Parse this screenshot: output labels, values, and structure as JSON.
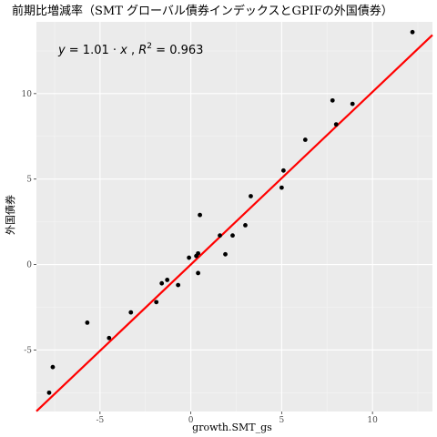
{
  "chart_data": {
    "type": "scatter",
    "title": "前期比増減率（SMT グローバル債券インデックスとGPIFの外国債券）",
    "xlabel": "growth.SMT_gs",
    "ylabel": "外国債券",
    "xlim": [
      -8.5,
      13.3
    ],
    "ylim": [
      -8.6,
      14.2
    ],
    "x_ticks": [
      -5,
      0,
      5,
      10
    ],
    "y_ticks": [
      -5,
      0,
      5,
      10
    ],
    "x_tick_labels": [
      "-5",
      "0",
      "5",
      "10"
    ],
    "y_tick_labels": [
      "-5",
      "0",
      "5",
      "10"
    ],
    "grid": true,
    "points": [
      {
        "x": -7.8,
        "y": -7.5
      },
      {
        "x": -7.6,
        "y": -6.0
      },
      {
        "x": -5.7,
        "y": -3.4
      },
      {
        "x": -4.5,
        "y": -4.3
      },
      {
        "x": -3.3,
        "y": -2.8
      },
      {
        "x": -1.9,
        "y": -2.2
      },
      {
        "x": -1.6,
        "y": -1.1
      },
      {
        "x": -1.3,
        "y": -0.9
      },
      {
        "x": -0.7,
        "y": -1.2
      },
      {
        "x": -0.1,
        "y": 0.4
      },
      {
        "x": 0.3,
        "y": 0.5
      },
      {
        "x": 0.4,
        "y": 0.65
      },
      {
        "x": 0.4,
        "y": -0.5
      },
      {
        "x": 0.5,
        "y": 2.9
      },
      {
        "x": 1.6,
        "y": 1.7
      },
      {
        "x": 1.9,
        "y": 0.6
      },
      {
        "x": 2.3,
        "y": 1.7
      },
      {
        "x": 3.0,
        "y": 2.3
      },
      {
        "x": 3.3,
        "y": 4.0
      },
      {
        "x": 5.0,
        "y": 4.5
      },
      {
        "x": 5.1,
        "y": 5.5
      },
      {
        "x": 6.3,
        "y": 7.3
      },
      {
        "x": 7.8,
        "y": 9.6
      },
      {
        "x": 8.0,
        "y": 8.2
      },
      {
        "x": 8.9,
        "y": 9.4
      },
      {
        "x": 12.2,
        "y": 13.6
      }
    ],
    "fit_line": {
      "slope": 1.01,
      "intercept": 0,
      "color": "#ff0000"
    },
    "annotation": {
      "eq_y": "y",
      "eq_rhs": " = 1.01 · ",
      "eq_x": "x",
      "eq_sep": " ,   ",
      "eq_r": "R",
      "eq_sup": "2",
      "eq_val": " = 0.963",
      "at": [
        -7.3,
        12.6
      ]
    },
    "colors": {
      "panel": "#ebebeb",
      "grid_major": "#ffffff",
      "grid_minor": "#f5f5f5",
      "point": "#000000"
    }
  }
}
